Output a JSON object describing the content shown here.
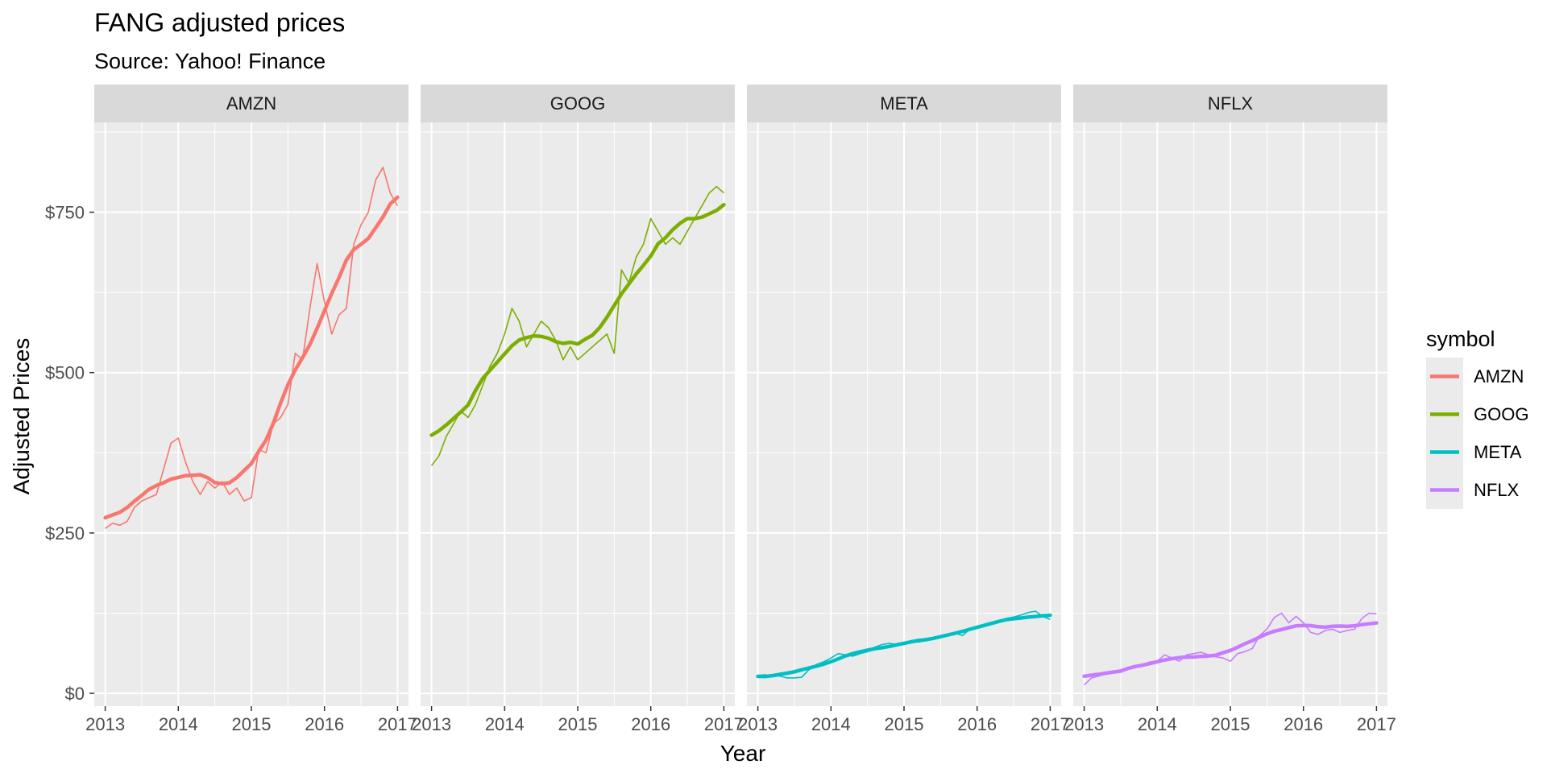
{
  "chart_data": {
    "type": "line",
    "title": "FANG adjusted prices",
    "subtitle": "Source: Yahoo! Finance",
    "xlabel": "Year",
    "ylabel": "Adjusted Prices",
    "xlim": [
      2012.85,
      2017.15
    ],
    "ylim": [
      -20,
      890
    ],
    "x_ticks": [
      "2013",
      "2014",
      "2015",
      "2016",
      "2017"
    ],
    "y_ticks": [
      "$0",
      "$250",
      "$500",
      "$750"
    ],
    "y_tick_values": [
      0,
      250,
      500,
      750
    ],
    "legend": {
      "title": "symbol",
      "placement": "right"
    },
    "facets": [
      "AMZN",
      "GOOG",
      "META",
      "NFLX"
    ],
    "series": [
      {
        "name": "AMZN",
        "color": "#F8766D",
        "x": [
          2013,
          2013.1,
          2013.2,
          2013.3,
          2013.4,
          2013.5,
          2013.6,
          2013.7,
          2013.8,
          2013.9,
          2014,
          2014.1,
          2014.2,
          2014.3,
          2014.4,
          2014.5,
          2014.6,
          2014.7,
          2014.8,
          2014.9,
          2015,
          2015.1,
          2015.2,
          2015.3,
          2015.4,
          2015.5,
          2015.6,
          2015.7,
          2015.8,
          2015.9,
          2016,
          2016.1,
          2016.2,
          2016.3,
          2016.4,
          2016.5,
          2016.6,
          2016.7,
          2016.8,
          2016.9,
          2017
        ],
        "values": [
          257,
          265,
          262,
          268,
          290,
          300,
          305,
          310,
          350,
          390,
          398,
          360,
          330,
          310,
          330,
          320,
          330,
          310,
          320,
          300,
          305,
          380,
          375,
          420,
          430,
          450,
          530,
          520,
          600,
          670,
          610,
          560,
          590,
          600,
          700,
          730,
          750,
          800,
          820,
          780,
          760
        ]
      },
      {
        "name": "GOOG",
        "color": "#7CAE00",
        "x": [
          2013,
          2013.1,
          2013.2,
          2013.3,
          2013.4,
          2013.5,
          2013.6,
          2013.7,
          2013.8,
          2013.9,
          2014,
          2014.1,
          2014.2,
          2014.3,
          2014.4,
          2014.5,
          2014.6,
          2014.7,
          2014.8,
          2014.9,
          2015,
          2015.1,
          2015.2,
          2015.3,
          2015.4,
          2015.5,
          2015.6,
          2015.7,
          2015.8,
          2015.9,
          2016,
          2016.1,
          2016.2,
          2016.3,
          2016.4,
          2016.5,
          2016.6,
          2016.7,
          2016.8,
          2016.9,
          2017
        ],
        "values": [
          355,
          370,
          400,
          420,
          440,
          430,
          450,
          480,
          510,
          530,
          560,
          600,
          580,
          540,
          560,
          580,
          570,
          550,
          520,
          540,
          520,
          530,
          540,
          550,
          560,
          530,
          660,
          640,
          680,
          700,
          740,
          720,
          700,
          710,
          700,
          720,
          740,
          760,
          780,
          790,
          780
        ]
      },
      {
        "name": "META",
        "color": "#00BFC4",
        "x": [
          2013,
          2013.1,
          2013.2,
          2013.3,
          2013.4,
          2013.5,
          2013.6,
          2013.7,
          2013.8,
          2013.9,
          2014,
          2014.1,
          2014.2,
          2014.3,
          2014.4,
          2014.5,
          2014.6,
          2014.7,
          2014.8,
          2014.9,
          2015,
          2015.1,
          2015.2,
          2015.3,
          2015.4,
          2015.5,
          2015.6,
          2015.7,
          2015.8,
          2015.9,
          2016,
          2016.1,
          2016.2,
          2016.3,
          2016.4,
          2016.5,
          2016.6,
          2016.7,
          2016.8,
          2016.9,
          2017
        ],
        "values": [
          28,
          29,
          27,
          27,
          24,
          24,
          25,
          37,
          45,
          49,
          55,
          62,
          60,
          58,
          62,
          65,
          72,
          76,
          78,
          76,
          76,
          80,
          80,
          82,
          85,
          88,
          92,
          94,
          90,
          100,
          104,
          106,
          110,
          112,
          117,
          119,
          122,
          126,
          128,
          120,
          115
        ]
      },
      {
        "name": "NFLX",
        "color": "#C77CFF",
        "x": [
          2013,
          2013.1,
          2013.2,
          2013.3,
          2013.4,
          2013.5,
          2013.6,
          2013.7,
          2013.8,
          2013.9,
          2014,
          2014.1,
          2014.2,
          2014.3,
          2014.4,
          2014.5,
          2014.6,
          2014.7,
          2014.8,
          2014.9,
          2015,
          2015.1,
          2015.2,
          2015.3,
          2015.4,
          2015.5,
          2015.6,
          2015.7,
          2015.8,
          2015.9,
          2016,
          2016.1,
          2016.2,
          2016.3,
          2016.4,
          2016.5,
          2016.6,
          2016.7,
          2016.8,
          2016.9,
          2017
        ],
        "values": [
          13,
          24,
          27,
          31,
          32,
          33,
          38,
          40,
          45,
          49,
          50,
          60,
          55,
          50,
          60,
          62,
          64,
          60,
          57,
          55,
          50,
          62,
          65,
          70,
          90,
          100,
          118,
          125,
          110,
          120,
          110,
          95,
          92,
          98,
          100,
          95,
          98,
          100,
          117,
          125,
          124
        ]
      }
    ]
  }
}
